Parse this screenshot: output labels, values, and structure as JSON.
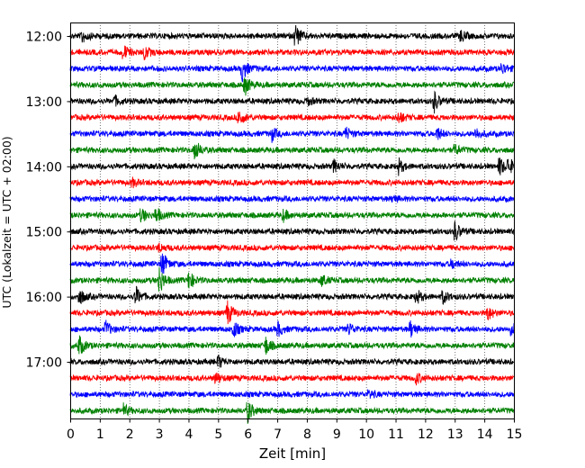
{
  "chart_data": {
    "type": "line",
    "title": "",
    "xlabel": "Zeit  [min]",
    "ylabel": "UTC (Lokalzeit = UTC + 02:00)",
    "xlim": [
      0,
      15
    ],
    "x_ticks": [
      "0",
      "1",
      "2",
      "3",
      "4",
      "5",
      "6",
      "7",
      "8",
      "9",
      "10",
      "11",
      "12",
      "13",
      "14",
      "15"
    ],
    "y_ticks": [
      "12:00",
      "13:00",
      "14:00",
      "15:00",
      "16:00",
      "17:00"
    ],
    "grid": "vertical dotted at each minute",
    "trace_colors": [
      "#000000",
      "#ff0000",
      "#0000ff",
      "#008000"
    ],
    "traces": [
      {
        "start": "12:00",
        "events": [
          [
            0.4,
            1.0
          ],
          [
            7.6,
            2.0
          ],
          [
            13.2,
            0.9
          ]
        ]
      },
      {
        "start": "12:15",
        "events": [
          [
            1.8,
            1.1
          ],
          [
            2.5,
            1.0
          ]
        ]
      },
      {
        "start": "12:30",
        "events": [
          [
            5.8,
            2.0
          ],
          [
            14.6,
            0.8
          ]
        ]
      },
      {
        "start": "12:45",
        "events": [
          [
            5.9,
            1.5
          ]
        ]
      },
      {
        "start": "13:00",
        "events": [
          [
            1.5,
            0.7
          ],
          [
            8.0,
            0.6
          ],
          [
            12.3,
            1.6
          ]
        ]
      },
      {
        "start": "13:15",
        "events": [
          [
            5.7,
            1.3
          ],
          [
            11.1,
            1.0
          ]
        ]
      },
      {
        "start": "13:30",
        "events": [
          [
            6.8,
            1.1
          ],
          [
            9.3,
            1.0
          ],
          [
            12.4,
            1.0
          ],
          [
            13.7,
            0.9
          ]
        ]
      },
      {
        "start": "13:45",
        "events": [
          [
            4.2,
            1.7
          ],
          [
            13.0,
            0.8
          ]
        ]
      },
      {
        "start": "14:00",
        "events": [
          [
            8.9,
            1.0
          ],
          [
            11.1,
            1.1
          ],
          [
            14.5,
            1.5
          ],
          [
            14.8,
            1.2
          ]
        ]
      },
      {
        "start": "14:15",
        "events": [
          [
            2.1,
            0.6
          ]
        ]
      },
      {
        "start": "14:30",
        "events": [
          [
            10.9,
            0.5
          ]
        ]
      },
      {
        "start": "14:45",
        "events": [
          [
            2.4,
            1.1
          ],
          [
            2.9,
            1.2
          ],
          [
            7.2,
            0.8
          ]
        ]
      },
      {
        "start": "15:00",
        "events": [
          [
            13.0,
            1.6
          ]
        ]
      },
      {
        "start": "15:15",
        "events": [
          [
            3.0,
            0.6
          ]
        ]
      },
      {
        "start": "15:30",
        "events": [
          [
            3.1,
            2.0
          ],
          [
            12.9,
            0.7
          ]
        ]
      },
      {
        "start": "15:45",
        "events": [
          [
            3.0,
            2.2
          ],
          [
            4.0,
            1.5
          ],
          [
            8.5,
            0.9
          ]
        ]
      },
      {
        "start": "16:00",
        "events": [
          [
            0.3,
            1.3
          ],
          [
            2.2,
            1.6
          ],
          [
            11.7,
            1.1
          ],
          [
            12.6,
            1.0
          ]
        ]
      },
      {
        "start": "16:15",
        "events": [
          [
            5.3,
            2.0
          ],
          [
            14.1,
            1.1
          ]
        ]
      },
      {
        "start": "16:30",
        "events": [
          [
            1.2,
            1.2
          ],
          [
            5.5,
            1.4
          ],
          [
            7.0,
            1.2
          ],
          [
            9.4,
            1.0
          ],
          [
            11.5,
            1.2
          ],
          [
            14.9,
            1.1
          ]
        ]
      },
      {
        "start": "16:45",
        "events": [
          [
            0.3,
            1.6
          ],
          [
            6.6,
            1.4
          ]
        ]
      },
      {
        "start": "17:00",
        "events": [
          [
            5.0,
            1.0
          ]
        ]
      },
      {
        "start": "17:15",
        "events": [
          [
            4.9,
            1.0
          ],
          [
            11.7,
            0.8
          ]
        ]
      },
      {
        "start": "17:30",
        "events": [
          [
            10.1,
            0.6
          ]
        ]
      },
      {
        "start": "17:45",
        "events": [
          [
            1.8,
            0.9
          ],
          [
            6.0,
            1.6
          ]
        ]
      }
    ]
  }
}
